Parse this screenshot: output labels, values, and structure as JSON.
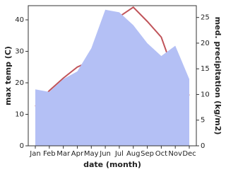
{
  "chart_data": {
    "type": "line-area",
    "x_label": "date (month)",
    "y_label": "max temp (C)",
    "y2_label": "med. precipitation (kg/m2)",
    "categories": [
      "Jan",
      "Feb",
      "Mar",
      "Apr",
      "May",
      "Jun",
      "Jul",
      "Aug",
      "Sep",
      "Oct",
      "Nov",
      "Dec"
    ],
    "series": [
      {
        "name": "max temp",
        "type": "line",
        "color": "#c0545a",
        "values": [
          12.5,
          17.5,
          21.5,
          25,
          27,
          33,
          41,
          44,
          39.5,
          34.5,
          22,
          16
        ]
      },
      {
        "name": "med. precipitation",
        "type": "area",
        "axis": "y2",
        "color": "#b4c0f5",
        "values": [
          11,
          10.5,
          13,
          14.5,
          19,
          26.5,
          26,
          23.5,
          20,
          17.5,
          19.5,
          13
        ]
      }
    ],
    "ylim": [
      0,
      44.5
    ],
    "yticks": [
      0,
      10,
      20,
      30,
      40
    ],
    "y2lim": [
      0,
      27.3
    ],
    "y2ticks": [
      0,
      5,
      10,
      15,
      20,
      25
    ]
  }
}
